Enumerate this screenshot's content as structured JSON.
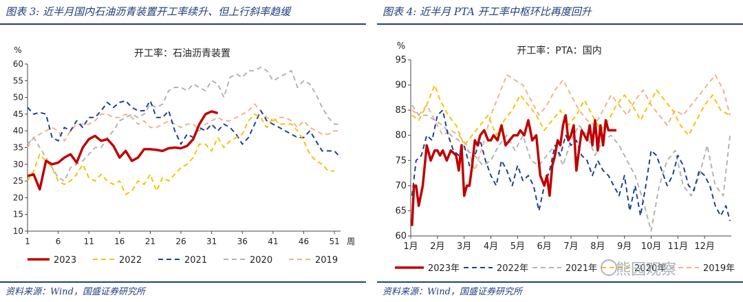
{
  "left": {
    "title": "图表 3:  近半月国内石油沥青装置开工率续升、但上行斜率趋缓",
    "source": "资料来源：Wind，国盛证券研究所"
  },
  "right": {
    "title": "图表 4:  近半月 PTA 开工率中枢环比再度回升",
    "source": "资料来源：Wind，国盛证券研究所",
    "watermark": "熊园观察"
  },
  "chart_data": [
    {
      "type": "line",
      "title": "开工率：石油沥青装置",
      "ylabel": "%",
      "xlabel": "周",
      "xlim": [
        1,
        52
      ],
      "ylim": [
        10,
        60
      ],
      "yticks": [
        10,
        15,
        20,
        25,
        30,
        35,
        40,
        45,
        50,
        55,
        60
      ],
      "xticks": [
        1,
        6,
        11,
        16,
        21,
        26,
        31,
        36,
        41,
        46,
        51
      ],
      "series": [
        {
          "name": "2023",
          "color": "#c00000",
          "dash": "solid",
          "width": 3.5,
          "x": [
            1,
            2,
            3,
            4,
            5,
            6,
            7,
            8,
            9,
            10,
            11,
            12,
            13,
            14,
            15,
            16,
            17,
            18,
            19,
            20,
            21,
            22,
            23,
            24,
            25,
            26,
            27,
            28,
            29,
            30,
            31,
            32
          ],
          "y": [
            26.5,
            27.0,
            22.5,
            31.0,
            30.0,
            30.5,
            32.0,
            33.0,
            30.5,
            35.0,
            37.5,
            38.5,
            37.0,
            37.5,
            35.5,
            32.0,
            34.0,
            31.0,
            32.0,
            34.5,
            34.5,
            34.3,
            34.0,
            34.8,
            35.0,
            34.8,
            35.5,
            37.5,
            42.0,
            45.0,
            45.8,
            45.3
          ]
        },
        {
          "name": "2022",
          "color": "#f5c400",
          "dash": "7 5",
          "width": 2,
          "x": [
            1,
            2,
            3,
            4,
            5,
            6,
            7,
            8,
            9,
            10,
            11,
            12,
            13,
            14,
            15,
            16,
            17,
            18,
            19,
            20,
            21,
            22,
            23,
            24,
            25,
            26,
            27,
            28,
            29,
            30,
            31,
            32,
            33,
            34,
            35,
            36,
            37,
            38,
            39,
            40,
            41,
            42,
            43,
            44,
            45,
            46,
            47,
            48,
            49,
            50,
            51
          ],
          "y": [
            25,
            28,
            33,
            31,
            29,
            25,
            24,
            25,
            27,
            30,
            26,
            25,
            27,
            25,
            24,
            25,
            21,
            22,
            25,
            24,
            27,
            22,
            26,
            25,
            27,
            29,
            30,
            32,
            36,
            36,
            34,
            38,
            35,
            37,
            38,
            39,
            43,
            45,
            44,
            41,
            44,
            42,
            42,
            42,
            40,
            37,
            33,
            31,
            30,
            28,
            28
          ]
        },
        {
          "name": "2021",
          "color": "#1f3f94",
          "dash": "7 5",
          "width": 2,
          "x": [
            1,
            2,
            3,
            4,
            5,
            6,
            7,
            8,
            9,
            10,
            11,
            12,
            13,
            14,
            15,
            16,
            17,
            18,
            19,
            20,
            21,
            22,
            23,
            24,
            25,
            26,
            27,
            28,
            29,
            30,
            31,
            32,
            33,
            34,
            35,
            36,
            37,
            38,
            39,
            40,
            41,
            42,
            43,
            44,
            45,
            46,
            47,
            48,
            49,
            50,
            51,
            52
          ],
          "y": [
            47,
            45,
            45.5,
            45,
            38,
            37,
            41,
            40,
            43,
            41,
            44,
            44,
            46,
            48.5,
            47,
            48.5,
            49,
            47,
            46,
            46,
            49,
            44,
            44,
            46,
            40,
            36,
            39,
            38,
            41,
            40,
            42,
            40,
            42,
            41,
            39,
            36,
            38,
            42,
            46,
            43,
            42,
            41,
            40,
            39,
            38,
            38,
            40,
            37,
            34,
            34,
            34,
            32
          ]
        },
        {
          "name": "2020",
          "color": "#b3b3b3",
          "dash": "7 5",
          "width": 2,
          "x": [
            1,
            2,
            3,
            4,
            5,
            6,
            7,
            8,
            9,
            10,
            11,
            12,
            13,
            14,
            15,
            16,
            17,
            18,
            19,
            20,
            21,
            22,
            23,
            24,
            25,
            26,
            27,
            28,
            29,
            30,
            31,
            32,
            33,
            34,
            35,
            36,
            37,
            38,
            39,
            40,
            41,
            42,
            43,
            44,
            45,
            46,
            47,
            48,
            49,
            50,
            51,
            52
          ],
          "y": [
            36,
            38,
            35,
            32,
            29,
            26,
            25,
            29,
            30,
            31,
            33,
            35,
            35,
            38,
            40,
            43,
            44,
            45,
            44,
            45,
            48,
            47,
            48,
            52,
            53,
            53,
            52,
            54,
            53,
            52,
            55,
            54,
            50,
            56,
            57,
            56,
            58,
            58,
            59,
            58,
            55,
            56,
            57,
            58,
            53,
            55,
            54,
            51,
            47,
            44,
            42,
            42
          ]
        },
        {
          "name": "2019",
          "color": "#f4b08e",
          "dash": "7 5",
          "width": 2,
          "x": [
            1,
            2,
            3,
            4,
            5,
            6,
            7,
            8,
            9,
            10,
            11,
            12,
            13,
            14,
            15,
            16,
            17,
            18,
            19,
            20,
            21,
            22,
            23,
            24,
            25,
            26,
            27,
            28,
            29,
            30,
            31,
            32,
            33,
            34,
            35,
            36,
            37,
            38,
            39,
            40,
            41,
            42,
            43,
            44,
            45,
            46,
            47,
            48,
            49,
            50,
            51,
            52
          ],
          "y": [
            35,
            38,
            39,
            40,
            41,
            40,
            37,
            40,
            42,
            42,
            42,
            43,
            45,
            45,
            44,
            44,
            45,
            44,
            42,
            43,
            41,
            41,
            42,
            43,
            42,
            41,
            42,
            42,
            40,
            42,
            43,
            44,
            43,
            43,
            44,
            45,
            46,
            48,
            46,
            44,
            43,
            44,
            44,
            43,
            41,
            43,
            41,
            40,
            39,
            39,
            40,
            40
          ]
        }
      ]
    },
    {
      "type": "line",
      "title": "开工率：PTA：国内",
      "ylabel": "%",
      "xlim": [
        1,
        13
      ],
      "ylim": [
        60,
        95
      ],
      "yticks": [
        60,
        65,
        70,
        75,
        80,
        85,
        90,
        95
      ],
      "xtick_labels": [
        "1月",
        "2月",
        "3月",
        "4月",
        "5月",
        "6月",
        "7月",
        "8月",
        "9月",
        "10月",
        "11月",
        "12月"
      ],
      "series": [
        {
          "name": "2023年",
          "color": "#c00000",
          "dash": "solid",
          "width": 3.5,
          "x": [
            1.05,
            1.12,
            1.2,
            1.3,
            1.45,
            1.6,
            1.75,
            1.9,
            2.0,
            2.1,
            2.2,
            2.35,
            2.5,
            2.7,
            2.8,
            2.9,
            3.0,
            3.1,
            3.2,
            3.3,
            3.4,
            3.5,
            3.6,
            3.75,
            3.9,
            4.0,
            4.1,
            4.25,
            4.4,
            4.55,
            4.7,
            4.85,
            5.0,
            5.1,
            5.25,
            5.4,
            5.55,
            5.7,
            5.85,
            6.0,
            6.1,
            6.2,
            6.3,
            6.4,
            6.5,
            6.6,
            6.7,
            6.8,
            6.9,
            7.0,
            7.1,
            7.2,
            7.3,
            7.4,
            7.5,
            7.6,
            7.7,
            7.8,
            7.9,
            8.0,
            8.1,
            8.2,
            8.3,
            8.4,
            8.5,
            8.6,
            8.7
          ],
          "y": [
            62,
            70,
            70,
            66,
            70,
            78,
            75,
            77,
            77,
            76,
            77,
            75,
            77,
            76,
            73,
            78,
            68,
            70,
            70,
            74,
            79,
            78,
            80,
            81,
            79,
            79,
            80,
            79,
            82,
            78,
            79,
            80,
            80,
            81,
            80,
            83,
            79,
            80,
            72,
            70,
            72,
            68,
            74,
            76,
            79,
            78,
            82,
            84,
            79,
            80,
            82,
            73,
            77,
            81,
            80,
            79,
            82,
            78,
            83,
            77,
            82,
            78,
            83,
            81,
            81,
            81,
            81
          ],
          "dash_ignored": false
        },
        {
          "name": "2022年",
          "color": "#1f3f94",
          "dash": "7 5",
          "width": 2,
          "x": [
            1.05,
            1.2,
            1.4,
            1.6,
            1.8,
            2.0,
            2.2,
            2.4,
            2.6,
            2.8,
            3.0,
            3.2,
            3.4,
            3.6,
            3.8,
            4.0,
            4.2,
            4.4,
            4.6,
            4.8,
            5.0,
            5.2,
            5.4,
            5.6,
            5.8,
            6.0,
            6.2,
            6.4,
            6.6,
            6.8,
            7.0,
            7.2,
            7.4,
            7.6,
            7.8,
            8.0,
            8.2,
            8.4,
            8.6,
            8.8,
            9.0,
            9.2,
            9.4,
            9.6,
            9.8,
            10.0,
            10.2,
            10.4,
            10.6,
            10.8,
            11.0,
            11.2,
            11.4,
            11.6,
            11.8,
            12.0,
            12.2,
            12.4,
            12.6,
            12.8,
            12.95
          ],
          "y": [
            68,
            75,
            76,
            80,
            79,
            84,
            85,
            80,
            77,
            76,
            78,
            74,
            76,
            79,
            75,
            72,
            70,
            75,
            73,
            70,
            74,
            71,
            72,
            70,
            65,
            70,
            73,
            78,
            76,
            80,
            78,
            79,
            76,
            75,
            72,
            75,
            73,
            72,
            70,
            68,
            72,
            65,
            70,
            64,
            70,
            77,
            76,
            73,
            70,
            72,
            76,
            74,
            70,
            69,
            73,
            72,
            70,
            66,
            64,
            66,
            63
          ]
        },
        {
          "name": "2021年",
          "color": "#b3b3b3",
          "dash": "7 5",
          "width": 2,
          "x": [
            1.05,
            1.3,
            1.6,
            1.9,
            2.2,
            2.5,
            2.8,
            3.1,
            3.4,
            3.7,
            4.0,
            4.3,
            4.6,
            4.9,
            5.2,
            5.5,
            5.8,
            6.1,
            6.4,
            6.7,
            7.0,
            7.3,
            7.6,
            7.9,
            8.2,
            8.5,
            8.8,
            9.1,
            9.4,
            9.7,
            10.0,
            10.3,
            10.6,
            10.9,
            11.2,
            11.5,
            11.8,
            12.1,
            12.4,
            12.7,
            12.95
          ],
          "y": [
            86,
            84,
            84,
            83,
            82,
            80,
            79,
            77,
            76,
            74,
            75,
            78,
            80,
            77,
            80,
            75,
            74,
            76,
            78,
            74,
            79,
            82,
            80,
            76,
            79,
            80,
            78,
            75,
            72,
            67,
            61,
            70,
            75,
            77,
            70,
            68,
            72,
            78,
            70,
            68,
            80
          ]
        },
        {
          "name": "2020年",
          "color": "#f5c400",
          "dash": "7 5",
          "width": 2,
          "x": [
            1.05,
            1.3,
            1.6,
            1.9,
            2.1,
            2.4,
            2.7,
            3.0,
            3.3,
            3.6,
            3.9,
            4.2,
            4.5,
            4.8,
            5.1,
            5.4,
            5.7,
            6.0,
            6.3,
            6.6,
            6.9,
            7.2,
            7.5,
            7.8,
            8.1,
            8.4,
            8.7,
            9.0,
            9.3,
            9.6,
            9.9,
            10.2,
            10.5,
            10.8,
            11.1,
            11.4,
            11.7,
            12.0,
            12.3,
            12.6,
            12.95
          ],
          "y": [
            84,
            83,
            86,
            90,
            87,
            84,
            82,
            78,
            80,
            82,
            84,
            80,
            83,
            85,
            88,
            86,
            84,
            81,
            83,
            85,
            82,
            84,
            87,
            84,
            81,
            83,
            86,
            88,
            86,
            83,
            86,
            89,
            87,
            85,
            82,
            80,
            83,
            86,
            88,
            85,
            84
          ]
        },
        {
          "name": "2019年",
          "color": "#f4b08e",
          "dash": "7 5",
          "width": 2,
          "x": [
            1.05,
            1.3,
            1.6,
            1.9,
            2.2,
            2.5,
            2.8,
            3.1,
            3.4,
            3.7,
            4.0,
            4.3,
            4.6,
            4.9,
            5.2,
            5.5,
            5.8,
            6.1,
            6.4,
            6.7,
            7.0,
            7.3,
            7.6,
            7.9,
            8.2,
            8.5,
            8.8,
            9.1,
            9.4,
            9.7,
            10.0,
            10.3,
            10.6,
            10.9,
            11.2,
            11.5,
            11.8,
            12.1,
            12.4,
            12.7,
            12.95
          ],
          "y": [
            85,
            84,
            86,
            83,
            80,
            81,
            80,
            78,
            73,
            78,
            84,
            88,
            92,
            91,
            90,
            87,
            84,
            86,
            89,
            91,
            88,
            85,
            83,
            82,
            85,
            88,
            86,
            84,
            87,
            89,
            86,
            84,
            82,
            85,
            84,
            86,
            88,
            90,
            92,
            89,
            84
          ]
        }
      ]
    }
  ]
}
